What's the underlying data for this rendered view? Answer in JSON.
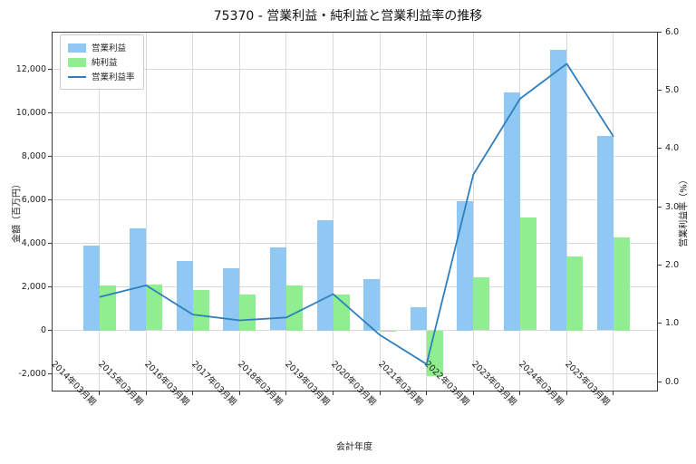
{
  "title": "75370 - 営業利益・純利益と営業利益率の推移",
  "chart_data": {
    "type": "bar+line combo",
    "title": "75370 - 営業利益・純利益と営業利益率の推移",
    "xlabel": "会計年度",
    "ylabel_left": "金額（百万円）",
    "ylabel_right": "営業利益率（%）",
    "legend_position": "upper left",
    "grid": true,
    "categories": [
      "2014年03月期",
      "2015年03月期",
      "2016年03月期",
      "2017年03月期",
      "2018年03月期",
      "2019年03月期",
      "2020年03月期",
      "2021年03月期",
      "2022年03月期",
      "2023年03月期",
      "2024年03月期",
      "2025年03月期"
    ],
    "series": [
      {
        "name": "営業利益",
        "type": "bar",
        "axis": "left",
        "color": "#8FC8F2",
        "values": [
          3900,
          4700,
          3200,
          2850,
          3800,
          5050,
          2350,
          1050,
          5950,
          10950,
          12900,
          8950
        ]
      },
      {
        "name": "純利益",
        "type": "bar",
        "axis": "left",
        "color": "#90EE90",
        "values": [
          2050,
          2100,
          1850,
          1650,
          2050,
          1650,
          -50,
          -2100,
          2450,
          5200,
          3400,
          4250
        ]
      },
      {
        "name": "営業利益率",
        "type": "line",
        "axis": "right",
        "color": "#2E7FBE",
        "values": [
          1.45,
          1.65,
          1.15,
          1.05,
          1.1,
          1.5,
          0.8,
          0.3,
          3.55,
          4.85,
          5.45,
          4.2
        ]
      }
    ],
    "axes": {
      "left": {
        "min": -2810,
        "max": 13720,
        "tick_values": [
          -2000,
          0,
          2000,
          4000,
          6000,
          8000,
          10000,
          12000
        ],
        "tick_labels": [
          "-2,000",
          "0",
          "2,000",
          "4,000",
          "6,000",
          "8,000",
          "10,000",
          "12,000"
        ]
      },
      "right": {
        "min": -0.17,
        "max": 6.0,
        "tick_values": [
          0,
          1,
          2,
          3,
          4,
          5,
          6
        ],
        "tick_labels": [
          "0.0",
          "1.0",
          "2.0",
          "3.0",
          "4.0",
          "5.0",
          "6.0"
        ]
      }
    }
  }
}
